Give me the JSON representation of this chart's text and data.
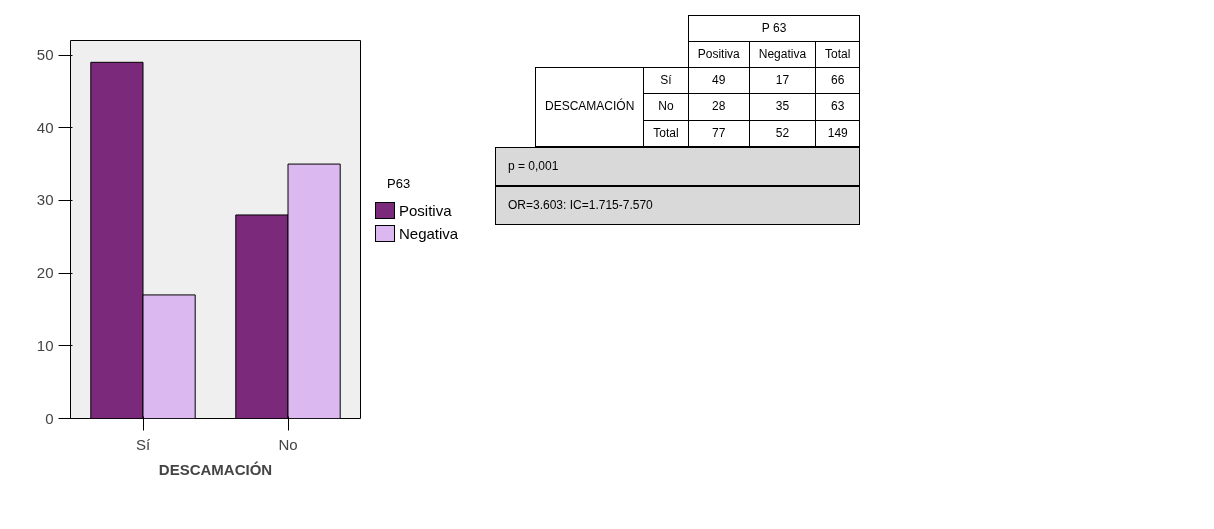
{
  "chart_data": [
    {
      "type": "bar",
      "xlabel": "DESCAMACIÓN",
      "legend_title": "P63",
      "categories": [
        "Sí",
        "No"
      ],
      "series": [
        {
          "name": "Positiva",
          "color": "#7b2a7b",
          "values": [
            49,
            28
          ]
        },
        {
          "name": "Negativa",
          "color": "#dcb8f0",
          "values": [
            17,
            35
          ]
        }
      ],
      "ylim": [
        0,
        52
      ],
      "yticks": [
        0,
        10,
        20,
        30,
        40,
        50
      ],
      "grid": false,
      "legend": "right"
    },
    {
      "type": "other",
      "annotations": [
        "P 63",
        "Positiva",
        "Negativa",
        "Total",
        "DESCAMACIÓN",
        "Sí",
        "49",
        "17",
        "66",
        "No",
        "28",
        "35",
        "63",
        "Total",
        "77",
        "52",
        "149",
        "p = 0,001",
        "OR=3.603: IC=1.715-7.570"
      ]
    }
  ]
}
